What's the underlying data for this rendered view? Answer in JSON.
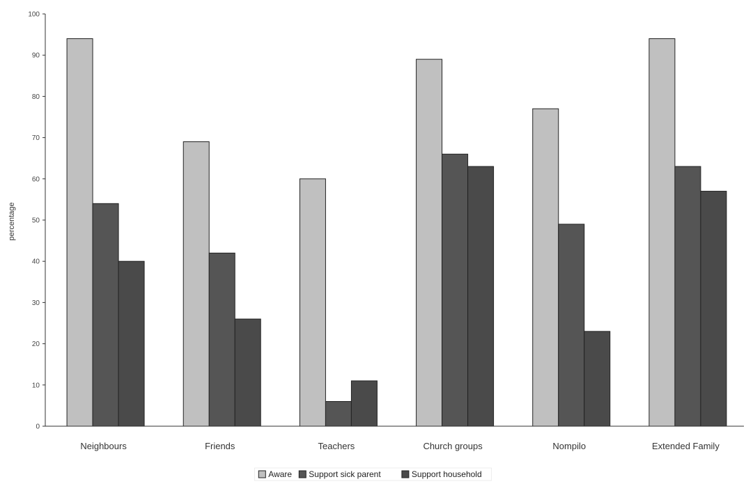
{
  "chart_data": {
    "type": "bar",
    "ylabel": "percentage",
    "ylim": [
      0,
      100
    ],
    "yticks": [
      0,
      10,
      20,
      30,
      40,
      50,
      60,
      70,
      80,
      90,
      100
    ],
    "categories": [
      "Neighbours",
      "Friends",
      "Teachers",
      "Church groups",
      "Nompilo",
      "Extended Family"
    ],
    "series": [
      {
        "name": "Aware",
        "color": "#c0c0c0",
        "values": [
          94,
          69,
          60,
          89,
          77,
          94
        ]
      },
      {
        "name": "Support sick parent",
        "color": "#555555",
        "values": [
          54,
          42,
          6,
          66,
          49,
          63
        ]
      },
      {
        "name": "Support household",
        "color": "#4a4a4a",
        "values": [
          40,
          26,
          11,
          63,
          23,
          57
        ]
      }
    ],
    "grid": false,
    "legend_position": "bottom-center",
    "bar_edge_color": "#222222",
    "axis_color": "#333333"
  }
}
